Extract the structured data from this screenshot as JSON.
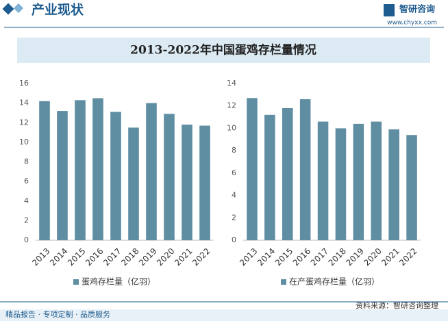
{
  "header": {
    "section": "产业现状",
    "brand": "智研咨询",
    "url": "www.chyxx.com"
  },
  "banner_title": "2013-2022年中国蛋鸡存栏量情况",
  "source": "资料来源：智研咨询整理",
  "footer": "精品报告 · 专项定制 · 品质服务",
  "chart_data": [
    {
      "type": "bar",
      "categories": [
        "2013",
        "2014",
        "2015",
        "2016",
        "2017",
        "2018",
        "2019",
        "2020",
        "2021",
        "2022"
      ],
      "series": [
        {
          "name": "蛋鸡存栏量（亿羽）",
          "color": "#5f8ea3",
          "values": [
            14.2,
            13.2,
            14.3,
            14.5,
            13.1,
            11.5,
            14.0,
            12.9,
            11.8,
            11.7
          ]
        }
      ],
      "ylim": [
        0,
        16
      ],
      "yticks": [
        0,
        2,
        4,
        6,
        8,
        10,
        12,
        14,
        16
      ],
      "grid": false
    },
    {
      "type": "bar",
      "categories": [
        "2013",
        "2014",
        "2015",
        "2016",
        "2017",
        "2018",
        "2019",
        "2020",
        "2021",
        "2022"
      ],
      "series": [
        {
          "name": "在产蛋鸡存栏量（亿羽）",
          "color": "#5f8ea3",
          "values": [
            12.7,
            11.2,
            11.8,
            12.6,
            10.6,
            10.0,
            10.4,
            10.6,
            9.9,
            9.4
          ]
        }
      ],
      "ylim": [
        0,
        14
      ],
      "yticks": [
        0,
        2,
        4,
        6,
        8,
        10,
        12,
        14
      ],
      "grid": false
    }
  ]
}
